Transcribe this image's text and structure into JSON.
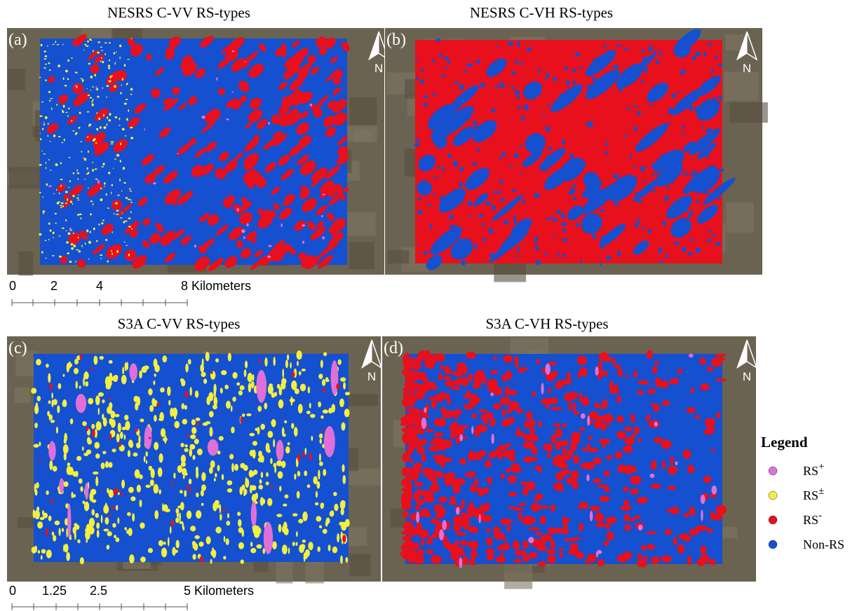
{
  "panels": [
    {
      "title": "NESRS C-VV RS-types",
      "label": "(a)",
      "north": "N"
    },
    {
      "title": "NESRS C-VH RS-types",
      "label": "(b)",
      "north": "N"
    },
    {
      "title": "S3A C-VV RS-types",
      "label": "(c)",
      "north": "N"
    },
    {
      "title": "S3A C-VH RS-types",
      "label": "(d)",
      "north": "N"
    }
  ],
  "scale_bars": [
    {
      "labels": [
        "0",
        "2",
        "4",
        "8 Kilometers"
      ]
    },
    {
      "labels": [
        "0",
        "1.25",
        "2.5",
        "5 Kilometers"
      ]
    }
  ],
  "legend": {
    "title": "Legend",
    "items": [
      {
        "label": "RS",
        "sup": "+",
        "color": "#e070d8"
      },
      {
        "label": "RS",
        "sup": "±",
        "color": "#f4f03c"
      },
      {
        "label": "RS",
        "sup": "-",
        "color": "#e8101c"
      },
      {
        "label": "Non-RS",
        "color": "#1450d0"
      }
    ]
  }
}
